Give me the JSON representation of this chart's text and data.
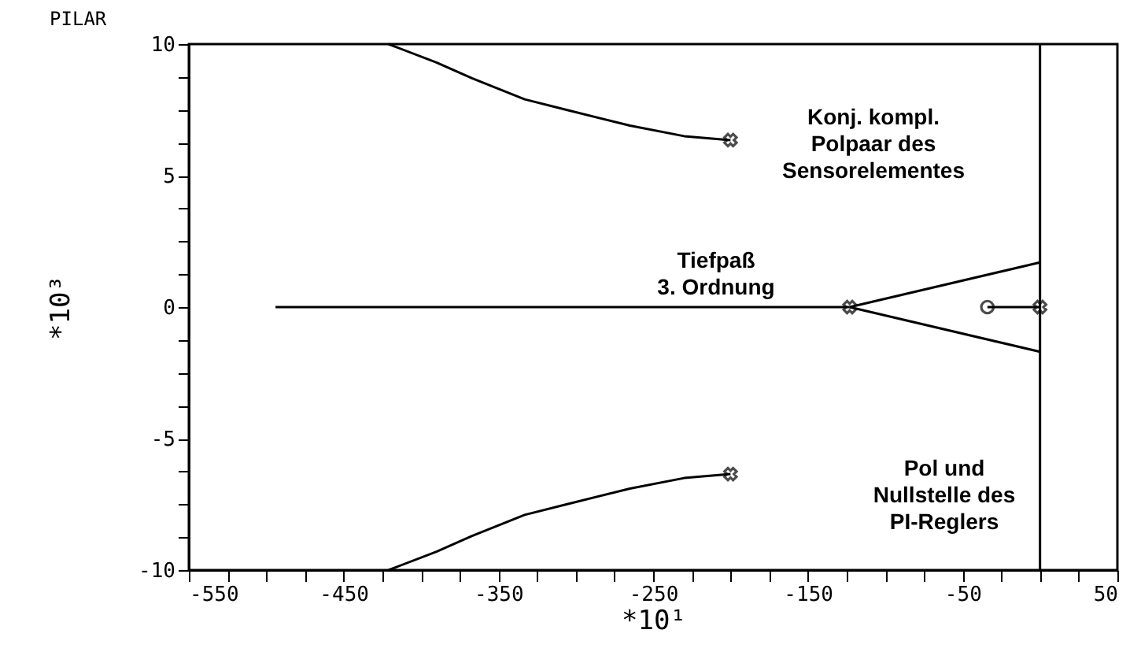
{
  "chart_data": {
    "type": "line",
    "title": "PILAR",
    "xlabel": "*10¹",
    "ylabel": "*10³",
    "xlim": [
      -550,
      50
    ],
    "ylim": [
      -10,
      10
    ],
    "xticks": [
      -550,
      {
        "value": -525,
        "label": null
      },
      {
        "value": -500,
        "label": null
      },
      {
        "value": -475,
        "label": null
      },
      -450,
      {
        "value": -425,
        "label": null
      },
      {
        "value": -400,
        "label": null
      },
      {
        "value": -375,
        "label": null
      },
      -350,
      {
        "value": -325,
        "label": null
      },
      {
        "value": -300,
        "label": null
      },
      {
        "value": -275,
        "label": null
      },
      -250,
      {
        "value": -225,
        "label": null
      },
      {
        "value": -200,
        "label": null
      },
      {
        "value": -175,
        "label": null
      },
      -150,
      {
        "value": -125,
        "label": null
      },
      {
        "value": -100,
        "label": null
      },
      {
        "value": -75,
        "label": null
      },
      -50,
      {
        "value": -25,
        "label": null
      },
      {
        "value": 0,
        "label": null
      },
      {
        "value": 25,
        "label": null
      },
      50
    ],
    "yticks": [
      -10,
      {
        "value": -8.75,
        "label": null
      },
      {
        "value": -7.5,
        "label": null
      },
      {
        "value": -6.25,
        "label": null
      },
      -5,
      {
        "value": -3.75,
        "label": null
      },
      {
        "value": -2.5,
        "label": null
      },
      {
        "value": -1.25,
        "label": null
      },
      0,
      {
        "value": 1.25,
        "label": null
      },
      {
        "value": 2.5,
        "label": null
      },
      {
        "value": 3.75,
        "label": null
      },
      5,
      {
        "value": 6.25,
        "label": null
      },
      {
        "value": 7.5,
        "label": null
      },
      {
        "value": 8.75,
        "label": null
      },
      10
    ],
    "grid": false,
    "legend": false,
    "line_style": "solid",
    "series": [
      {
        "color": "#000000",
        "x": [
          -200,
          -230,
          -265,
          -306,
          -333,
          -367,
          -390,
          -421
        ],
        "values": [
          6.35,
          6.5,
          6.9,
          7.5,
          7.9,
          8.7,
          9.3,
          10
        ]
      },
      {
        "color": "#000000",
        "x": [
          -200,
          -230,
          -265,
          -306,
          -333,
          -367,
          -390,
          -421
        ],
        "values": [
          -6.35,
          -6.5,
          -6.9,
          -7.5,
          -7.9,
          -8.7,
          -9.3,
          -10
        ]
      },
      {
        "color": "#000000",
        "x": [
          -123,
          -494
        ],
        "values": [
          0,
          0
        ]
      },
      {
        "color": "#000000",
        "x": [
          -123,
          0
        ],
        "values": [
          0,
          1.7
        ]
      },
      {
        "color": "#000000",
        "x": [
          -123,
          0
        ],
        "values": [
          0,
          -1.7
        ]
      },
      {
        "color": "#000000",
        "x": [
          0,
          -34
        ],
        "values": [
          0,
          0
        ]
      },
      {
        "color": "#000000",
        "x": [
          0,
          0
        ],
        "values": [
          -10,
          10
        ]
      },
      {
        "type": "scatter",
        "marker": "cross",
        "color": "#000000",
        "x": [
          -200,
          -200,
          -123,
          0
        ],
        "values": [
          6.35,
          -6.35,
          0,
          0
        ]
      },
      {
        "type": "scatter",
        "marker": "circle",
        "color": "#000000",
        "x": [
          -34
        ],
        "values": [
          0
        ]
      }
    ],
    "annotations": [
      "Konj. kompl.\nPolpaar des\nSensorelementes",
      "Tiefpaß\n3. Ordnung",
      "Pol und\nNullstelle des\nPI-Reglers"
    ]
  }
}
